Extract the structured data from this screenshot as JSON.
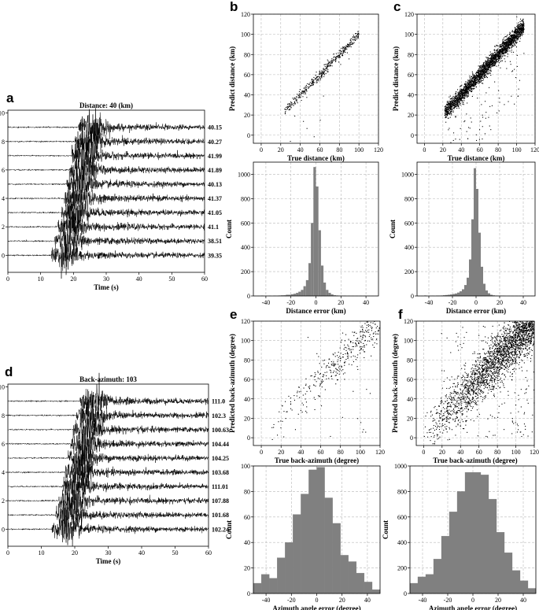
{
  "panel_letters": [
    "a",
    "b",
    "c",
    "d",
    "e",
    "f"
  ],
  "chart_data": [
    {
      "id": "a",
      "type": "line",
      "title": "Distance: 40 (km)",
      "xlabel": "Time (s)",
      "ylabel": "",
      "xlim": [
        0,
        60
      ],
      "ylim": [
        -1.2,
        10.2
      ],
      "xticks": [
        0,
        10,
        20,
        30,
        40,
        50,
        60
      ],
      "yticks": [
        0,
        2,
        4,
        6,
        8,
        10
      ],
      "trace_offsets": [
        9,
        8,
        7,
        6,
        5,
        4,
        3,
        2,
        1,
        0
      ],
      "trace_onsets_s": [
        21.5,
        20.5,
        19.5,
        18.8,
        18.0,
        17.2,
        16.3,
        15.3,
        14.3,
        13.2
      ],
      "trace_labels": [
        "40.15",
        "40.27",
        "41.99",
        "41.89",
        "40.13",
        "41.37",
        "41.05",
        "41.1",
        "38.51",
        "39.35"
      ],
      "grid": false
    },
    {
      "id": "b",
      "type": "scatter",
      "xlabel": "True distance (km)",
      "ylabel": "Predict distance (km)",
      "xlim": [
        -8,
        120
      ],
      "ylim": [
        -8,
        120
      ],
      "xticks": [
        0,
        20,
        40,
        60,
        80,
        100,
        120
      ],
      "yticks": [
        0,
        20,
        40,
        60,
        80,
        100,
        120
      ],
      "n_points": 420,
      "relation": "y ≈ x",
      "x_range": [
        24,
        100
      ],
      "grid": true
    },
    {
      "id": "c",
      "type": "scatter",
      "xlabel": "True distance (km)",
      "ylabel": "Predict distance (km)",
      "xlim": [
        -8,
        120
      ],
      "ylim": [
        -8,
        120
      ],
      "xticks": [
        0,
        20,
        40,
        60,
        80,
        100,
        120
      ],
      "yticks": [
        0,
        20,
        40,
        60,
        80,
        100,
        120
      ],
      "n_points": 2600,
      "relation": "y ≈ x",
      "x_range": [
        22,
        108
      ],
      "grid": true
    },
    {
      "id": "b-hist",
      "type": "bar",
      "xlabel": "Distance error (km)",
      "ylabel": "Count",
      "xlim": [
        -50,
        50
      ],
      "ylim": [
        0,
        1100
      ],
      "xticks": [
        -40,
        -20,
        0,
        20,
        40
      ],
      "yticks": [
        0,
        200,
        400,
        600,
        800,
        1000
      ],
      "bin_left_edges": [
        -44,
        -42,
        -40,
        -38,
        -36,
        -34,
        -32,
        -30,
        -28,
        -26,
        -24,
        -22,
        -20,
        -18,
        -16,
        -14,
        -12,
        -10,
        -8,
        -6,
        -4,
        -2,
        0,
        2,
        4,
        6,
        8,
        10,
        12,
        14,
        16,
        18,
        20,
        22
      ],
      "bin_width": 2,
      "values": [
        3,
        0,
        0,
        2,
        0,
        3,
        2,
        4,
        5,
        6,
        10,
        10,
        14,
        18,
        25,
        35,
        50,
        80,
        130,
        270,
        600,
        1060,
        900,
        540,
        250,
        110,
        50,
        25,
        12,
        6,
        4,
        2,
        2,
        2
      ],
      "grid": true
    },
    {
      "id": "c-hist",
      "type": "bar",
      "xlabel": "Distance error (km)",
      "ylabel": "Count",
      "xlim": [
        -50,
        50
      ],
      "ylim": [
        0,
        1100
      ],
      "xticks": [
        -40,
        -20,
        0,
        20,
        40
      ],
      "yticks": [
        0,
        200,
        400,
        600,
        800,
        1000
      ],
      "bin_left_edges": [
        -44,
        -42,
        -40,
        -38,
        -36,
        -34,
        -32,
        -30,
        -28,
        -26,
        -24,
        -22,
        -20,
        -18,
        -16,
        -14,
        -12,
        -10,
        -8,
        -6,
        -4,
        -2,
        0,
        2,
        4,
        6,
        8,
        10,
        12,
        14,
        16,
        18,
        20,
        22
      ],
      "bin_width": 2,
      "values": [
        4,
        0,
        0,
        2,
        0,
        3,
        3,
        4,
        6,
        8,
        10,
        12,
        16,
        20,
        28,
        38,
        55,
        90,
        150,
        300,
        630,
        1050,
        880,
        520,
        240,
        100,
        45,
        22,
        10,
        5,
        3,
        2,
        2,
        2
      ],
      "grid": true
    },
    {
      "id": "d",
      "type": "line",
      "title": "Back-azimuth: 103",
      "xlabel": "Time (s)",
      "ylabel": "",
      "xlim": [
        0,
        60
      ],
      "ylim": [
        -1.2,
        10.2
      ],
      "xticks": [
        0,
        10,
        20,
        30,
        40,
        50,
        60
      ],
      "yticks": [
        0,
        2,
        4,
        6,
        8,
        10
      ],
      "trace_offsets": [
        9,
        8,
        7,
        6,
        5,
        4,
        3,
        2,
        1,
        0
      ],
      "trace_onsets_s": [
        21.5,
        20.5,
        19.5,
        18.8,
        18.0,
        17.2,
        16.3,
        15.3,
        14.3,
        13.2
      ],
      "trace_labels": [
        "111.0",
        "102.3",
        "100.63",
        "104.44",
        "104.25",
        "103.68",
        "111.01",
        "107.88",
        "101.68",
        "102.24"
      ],
      "grid": false
    },
    {
      "id": "e",
      "type": "scatter",
      "xlabel": "True back-azimuth (degree)",
      "ylabel": "Predicted back-azimuth (degree)",
      "xlim": [
        -8,
        120
      ],
      "ylim": [
        -8,
        120
      ],
      "xticks": [
        0,
        20,
        40,
        60,
        80,
        100,
        120
      ],
      "yticks": [
        0,
        20,
        40,
        60,
        80,
        100,
        120
      ],
      "n_points": 380,
      "relation": "y ≈ x",
      "x_range": [
        5,
        120
      ],
      "grid": true
    },
    {
      "id": "f",
      "type": "scatter",
      "xlabel": "True back-azimuth (degree)",
      "ylabel": "Predicted back-azimuth (degree)",
      "xlim": [
        -8,
        120
      ],
      "ylim": [
        -8,
        120
      ],
      "xticks": [
        0,
        20,
        40,
        60,
        80,
        100,
        120
      ],
      "yticks": [
        0,
        20,
        40,
        60,
        80,
        100,
        120
      ],
      "n_points": 2600,
      "relation": "y ≈ x",
      "x_range": [
        0,
        120
      ],
      "grid": true
    },
    {
      "id": "e-hist",
      "type": "bar",
      "xlabel": "Azimuth angle error (degree)",
      "ylabel": "Count",
      "xlim": [
        -50,
        50
      ],
      "ylim": [
        0,
        100
      ],
      "xticks": [
        -40,
        -20,
        0,
        20,
        40
      ],
      "yticks": [
        0,
        20,
        40,
        60,
        80,
        100
      ],
      "bin_left_edges": [
        -50,
        -43.75,
        -37.5,
        -31.25,
        -25,
        -18.75,
        -12.5,
        -6.25,
        0,
        6.25,
        12.5,
        18.75,
        25,
        31.25,
        37.5,
        43.75
      ],
      "bin_width": 6.25,
      "values": [
        8,
        15,
        12,
        28,
        40,
        62,
        78,
        97,
        99,
        75,
        55,
        30,
        25,
        16,
        9,
        3
      ],
      "grid": true
    },
    {
      "id": "f-hist",
      "type": "bar",
      "xlabel": "Azimuth angle error (degree)",
      "ylabel": "Count",
      "xlim": [
        -50,
        50
      ],
      "ylim": [
        0,
        1000
      ],
      "xticks": [
        -40,
        -20,
        0,
        20,
        40
      ],
      "yticks": [
        0,
        200,
        400,
        600,
        800,
        1000
      ],
      "bin_left_edges": [
        -50,
        -43.75,
        -37.5,
        -31.25,
        -25,
        -18.75,
        -12.5,
        -6.25,
        0,
        6.25,
        12.5,
        18.75,
        25,
        31.25,
        37.5,
        43.75
      ],
      "bin_width": 6.25,
      "values": [
        80,
        130,
        150,
        270,
        450,
        640,
        800,
        950,
        950,
        930,
        740,
        480,
        320,
        180,
        100,
        40
      ],
      "grid": true
    }
  ]
}
